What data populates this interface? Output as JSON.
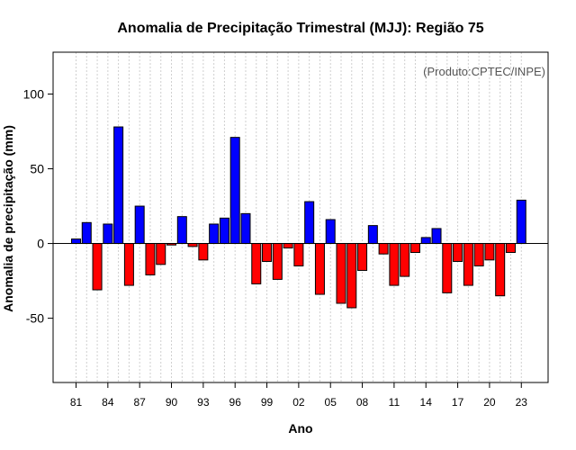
{
  "chart_data": {
    "type": "bar",
    "title": "Anomalia de Precipitação Trimestral (MJJ): Região 75",
    "xlabel": "Ano",
    "ylabel": "Anomalia de precipitação (mm)",
    "annotation": "(Produto:CPTEC/INPE)",
    "ylim": [
      -93,
      128
    ],
    "yticks": [
      "100",
      "50",
      "0",
      "-50"
    ],
    "ytick_values": [
      100,
      50,
      0,
      -50
    ],
    "xtick_labels": [
      "81",
      "84",
      "87",
      "90",
      "93",
      "96",
      "99",
      "02",
      "05",
      "08",
      "11",
      "14",
      "17",
      "20",
      "23"
    ],
    "xtick_years": [
      1981,
      1984,
      1987,
      1990,
      1993,
      1996,
      1999,
      2002,
      2005,
      2008,
      2011,
      2014,
      2017,
      2020,
      2023
    ],
    "grid": true,
    "positive_color": "#0000ff",
    "negative_color": "#ff0000",
    "categories": [
      1981,
      1982,
      1983,
      1984,
      1985,
      1986,
      1987,
      1988,
      1989,
      1990,
      1991,
      1992,
      1993,
      1994,
      1995,
      1996,
      1997,
      1998,
      1999,
      2000,
      2001,
      2002,
      2003,
      2004,
      2005,
      2006,
      2007,
      2008,
      2009,
      2010,
      2011,
      2012,
      2013,
      2014,
      2015,
      2016,
      2017,
      2018,
      2019,
      2020,
      2021,
      2022,
      2023
    ],
    "values": [
      3,
      14,
      -31,
      13,
      78,
      -28,
      25,
      -21,
      -14,
      -1,
      18,
      -2,
      -11,
      13,
      17,
      71,
      20,
      -27,
      -12,
      -24,
      -3,
      -15,
      28,
      -34,
      16,
      -40,
      -43,
      -18,
      12,
      -7,
      -28,
      -22,
      -6,
      4,
      10,
      -33,
      -12,
      -28,
      -15,
      -11,
      -35,
      -6,
      29
    ]
  }
}
